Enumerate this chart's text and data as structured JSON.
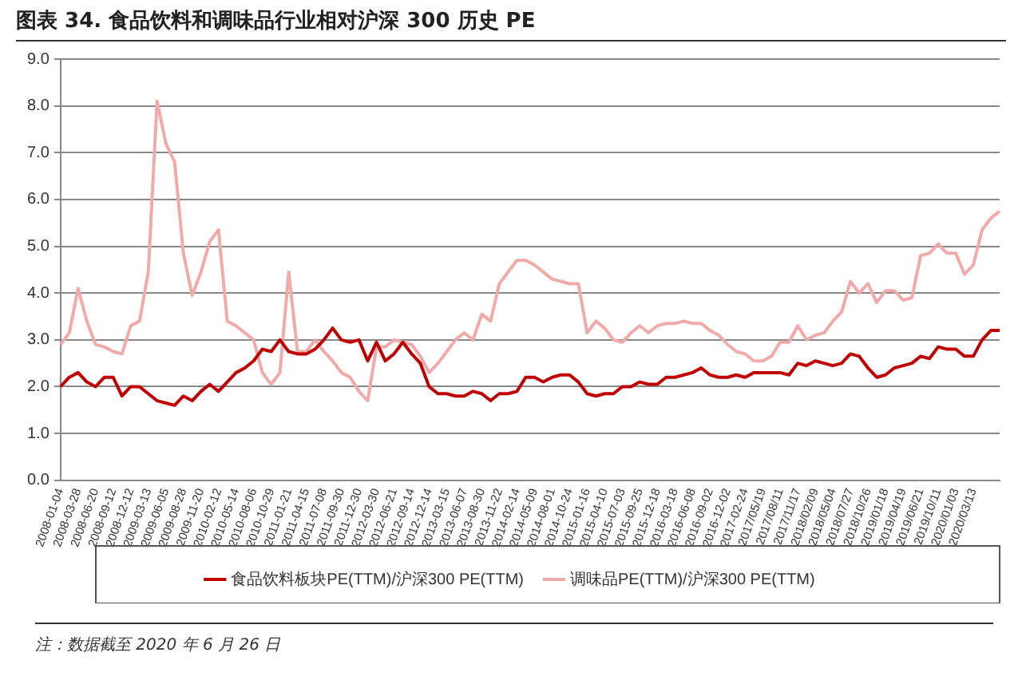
{
  "chart_data": {
    "type": "line",
    "title": "图表 34. 食品饮料和调味品行业相对沪深 300 历史 PE",
    "categories": [
      "2008-01-04",
      null,
      "2008-03-28",
      null,
      "2008-06-20",
      null,
      "2008-09-12",
      null,
      "2008-12-12",
      null,
      "2009-03-13",
      null,
      "2009-06-05",
      null,
      "2009-08-28",
      null,
      "2009-11-20",
      null,
      "2010-02-12",
      null,
      "2010-05-14",
      null,
      "2010-08-06",
      null,
      "2010-10-29",
      null,
      "2011-01-21",
      null,
      "2011-04-15",
      null,
      "2011-07-08",
      null,
      "2011-09-30",
      null,
      "2011-12-30",
      null,
      "2012-03-30",
      null,
      "2012-06-21",
      null,
      "2012-09-14",
      null,
      "2012-12-14",
      null,
      "2013-03-15",
      null,
      "2013-06-07",
      null,
      "2013-08-30",
      null,
      "2013-11-22",
      null,
      "2014-02-14",
      null,
      "2014-05-09",
      null,
      "2014-08-01",
      null,
      "2014-10-24",
      null,
      "2015-01-16",
      null,
      "2015-04-10",
      null,
      "2015-07-03",
      null,
      "2015-09-25",
      null,
      "2015-12-18",
      null,
      "2016-03-18",
      null,
      "2016-06-08",
      null,
      "2016-09-02",
      null,
      "2016-12-02",
      null,
      "2017-02-24",
      null,
      "2017/05/19",
      null,
      "2017/08/11",
      null,
      "2017/11/17",
      null,
      "2018/02/09",
      null,
      "2018/05/04",
      null,
      "2018/07/27",
      null,
      "2018/10/26",
      null,
      "2019/01/18",
      null,
      "2019/04/19",
      null,
      "2019/06/21",
      null,
      "2019/10/11",
      null,
      "2020/01/03",
      null,
      "2020/03/13",
      null,
      null,
      null
    ],
    "series": [
      {
        "name": "食品饮料板块PE(TTM)/沪深300 PE(TTM)",
        "color": "#c00000",
        "values": [
          2.0,
          2.2,
          2.3,
          2.1,
          2.0,
          2.2,
          2.2,
          1.8,
          2.0,
          2.0,
          1.85,
          1.7,
          1.65,
          1.6,
          1.8,
          1.7,
          1.9,
          2.05,
          1.9,
          2.1,
          2.3,
          2.4,
          2.55,
          2.8,
          2.75,
          3.0,
          2.75,
          2.7,
          2.7,
          2.8,
          3.0,
          3.25,
          3.0,
          2.95,
          3.0,
          2.55,
          2.95,
          2.55,
          2.7,
          2.95,
          2.7,
          2.5,
          2.0,
          1.85,
          1.85,
          1.8,
          1.8,
          1.9,
          1.85,
          1.7,
          1.85,
          1.85,
          1.9,
          2.2,
          2.2,
          2.1,
          2.2,
          2.25,
          2.25,
          2.1,
          1.85,
          1.8,
          1.85,
          1.85,
          2.0,
          2.0,
          2.1,
          2.05,
          2.05,
          2.2,
          2.2,
          2.25,
          2.3,
          2.4,
          2.25,
          2.2,
          2.2,
          2.25,
          2.2,
          2.3,
          2.3,
          2.3,
          2.3,
          2.25,
          2.5,
          2.45,
          2.55,
          2.5,
          2.45,
          2.5,
          2.7,
          2.65,
          2.4,
          2.2,
          2.25,
          2.4,
          2.45,
          2.5,
          2.65,
          2.6,
          2.85,
          2.8,
          2.8,
          2.65,
          2.65,
          3.0,
          3.2,
          3.2
        ]
      },
      {
        "name": "调味品PE(TTM)/沪深300 PE(TTM)",
        "color": "#f0aaaa",
        "values": [
          2.9,
          3.15,
          4.1,
          3.4,
          2.9,
          2.85,
          2.75,
          2.7,
          3.3,
          3.4,
          4.45,
          8.1,
          7.2,
          6.8,
          4.85,
          3.95,
          4.45,
          5.1,
          5.35,
          3.4,
          3.3,
          3.15,
          3.0,
          2.3,
          2.05,
          2.3,
          4.45,
          2.75,
          2.75,
          3.0,
          2.75,
          2.55,
          2.3,
          2.2,
          1.9,
          1.7,
          2.85,
          2.85,
          3.0,
          2.95,
          2.9,
          2.65,
          2.3,
          2.5,
          2.75,
          3.0,
          3.15,
          3.0,
          3.55,
          3.4,
          4.2,
          4.45,
          4.7,
          4.7,
          4.6,
          4.45,
          4.3,
          4.25,
          4.2,
          4.2,
          3.15,
          3.4,
          3.25,
          3.0,
          2.95,
          3.15,
          3.3,
          3.15,
          3.3,
          3.35,
          3.35,
          3.4,
          3.35,
          3.35,
          3.2,
          3.1,
          2.9,
          2.75,
          2.7,
          2.55,
          2.55,
          2.65,
          2.95,
          2.95,
          3.3,
          3.0,
          3.1,
          3.15,
          3.4,
          3.6,
          4.25,
          4.0,
          4.2,
          3.8,
          4.05,
          4.05,
          3.85,
          3.9,
          4.8,
          4.85,
          5.05,
          4.85,
          4.85,
          4.4,
          4.6,
          5.35,
          5.6,
          5.75
        ]
      }
    ],
    "ylim": [
      0,
      9
    ],
    "yticks": [
      {
        "value": 0,
        "label": "0.0"
      },
      {
        "value": 1,
        "label": "1.0"
      },
      {
        "value": 2,
        "label": "2.0"
      },
      {
        "value": 3,
        "label": "3.0"
      },
      {
        "value": 4,
        "label": "4.0"
      },
      {
        "value": 5,
        "label": "5.0"
      },
      {
        "value": 6,
        "label": "6.0"
      },
      {
        "value": 7,
        "label": "7.0"
      },
      {
        "value": 8,
        "label": "8.0"
      },
      {
        "value": 9,
        "label": "9.0"
      }
    ],
    "grid": "y",
    "legend": "bottom",
    "marker": "none",
    "line_style": "solid",
    "annotations": [
      "注：数据截至 2020 年 6 月 26 日"
    ]
  }
}
